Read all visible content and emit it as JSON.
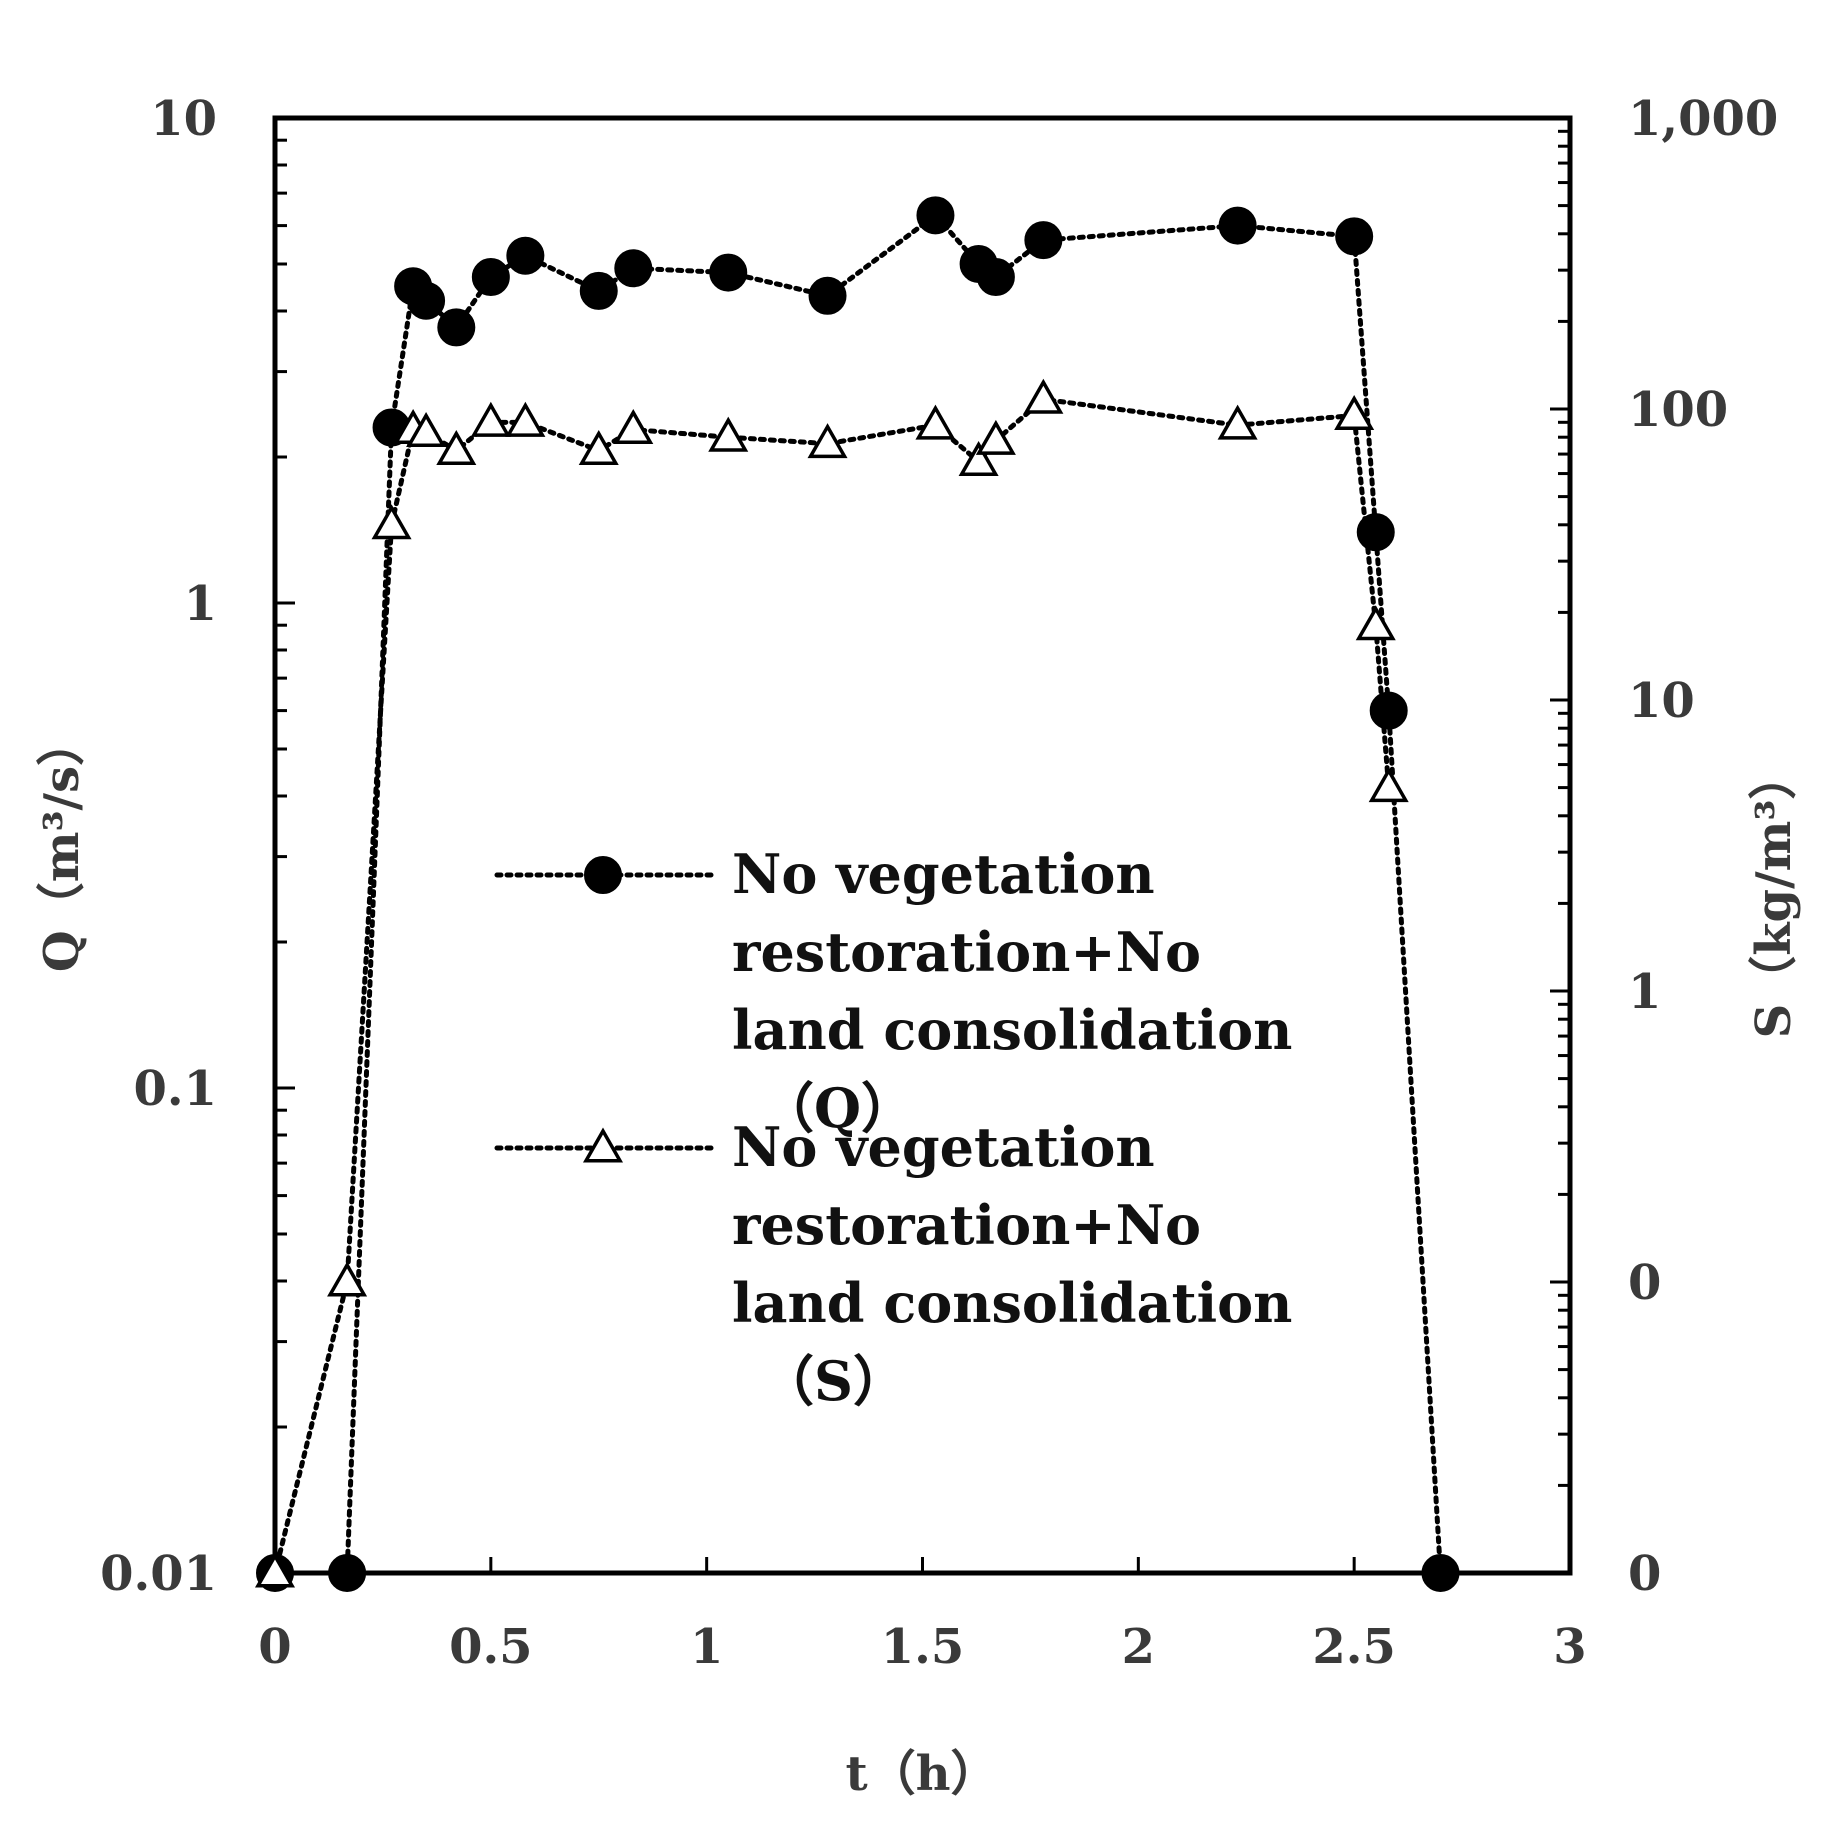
{
  "chart_data": {
    "type": "line",
    "title": "",
    "xlabel": "t（h）",
    "ylabel_left": "Q（m³/s）",
    "ylabel_right": "S（kg/m³）",
    "x_ticks": [
      "0",
      "0.5",
      "1",
      "1.5",
      "2",
      "2.5",
      "3"
    ],
    "y_left_ticks": [
      "0.01",
      "0.1",
      "1",
      "10"
    ],
    "y_right_ticks": [
      "0",
      "0",
      "1",
      "10",
      "100",
      "1,000"
    ],
    "xlim": [
      0,
      3
    ],
    "ylim_left": [
      0.01,
      10
    ],
    "ylim_right": [
      0.01,
      1000
    ],
    "grid": false,
    "legend_position": "center",
    "series": [
      {
        "name": "No vegetation restoration+No land consolidation（Q）",
        "legend_lines": [
          "No vegetation",
          "restoration+No",
          "land consolidation",
          "（Q）"
        ],
        "axis": "left",
        "marker": "filled-circle",
        "line_style": "dotted",
        "x": [
          0,
          0.167,
          0.27,
          0.32,
          0.35,
          0.42,
          0.5,
          0.58,
          0.75,
          0.83,
          1.05,
          1.28,
          1.53,
          1.63,
          1.67,
          1.78,
          2.23,
          2.5,
          2.55,
          2.58,
          2.7
        ],
        "values": [
          0.01,
          0.01,
          2.3,
          4.5,
          4.2,
          3.7,
          4.7,
          5.2,
          4.4,
          4.9,
          4.8,
          4.3,
          6.3,
          5.0,
          4.7,
          5.6,
          6.0,
          5.7,
          1.4,
          0.6,
          0.01
        ]
      },
      {
        "name": "No vegetation restoration+No land consolidation（S）",
        "legend_lines": [
          "No vegetation",
          "restoration+No",
          "land consolidation",
          "（S）"
        ],
        "axis": "right",
        "marker": "open-triangle",
        "line_style": "dotted",
        "x": [
          0,
          0.167,
          0.27,
          0.32,
          0.35,
          0.42,
          0.5,
          0.58,
          0.75,
          0.83,
          1.05,
          1.28,
          1.53,
          1.63,
          1.67,
          1.78,
          2.23,
          2.5,
          2.55,
          2.58
        ],
        "values": [
          0.01,
          0.1,
          40,
          85,
          83,
          72,
          90,
          90,
          72,
          85,
          80,
          76,
          88,
          66,
          78,
          108,
          88,
          95,
          18,
          5
        ]
      }
    ]
  }
}
